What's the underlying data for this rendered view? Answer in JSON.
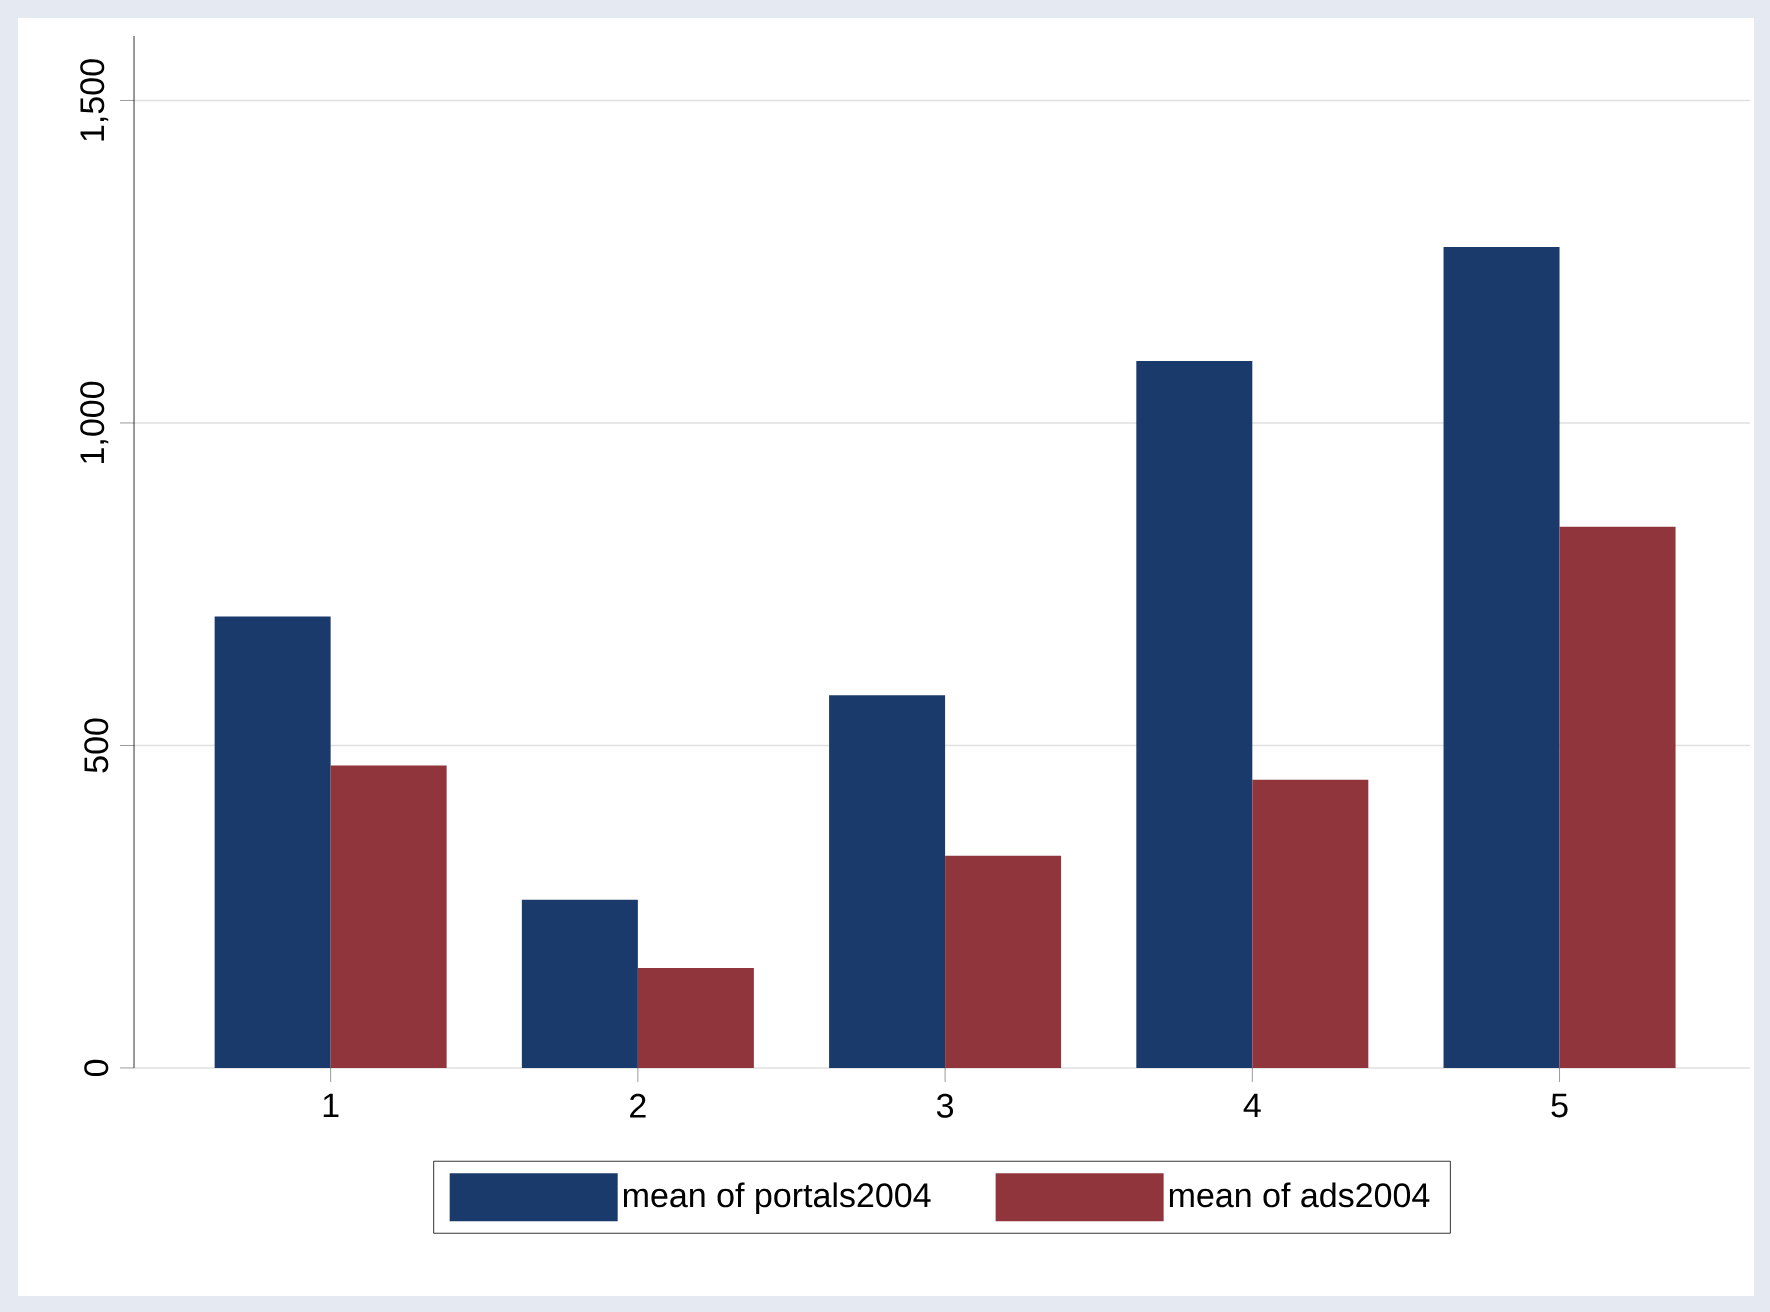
{
  "chart_data": {
    "type": "bar",
    "categories": [
      "1",
      "2",
      "3",
      "4",
      "5"
    ],
    "series": [
      {
        "name": "mean of portals2004",
        "color": "#1a3a6b",
        "values": [
          700,
          261,
          578,
          1096,
          1273
        ]
      },
      {
        "name": "mean of ads2004",
        "color": "#90353b",
        "values": [
          469,
          155,
          329,
          447,
          839
        ]
      }
    ],
    "ylim": [
      0,
      1600
    ],
    "yticks": [
      0,
      500,
      {
        "value": 1000,
        "label": "1,000"
      },
      {
        "value": 1500,
        "label": "1,500"
      }
    ],
    "grid": "y",
    "legend": "bottom"
  }
}
